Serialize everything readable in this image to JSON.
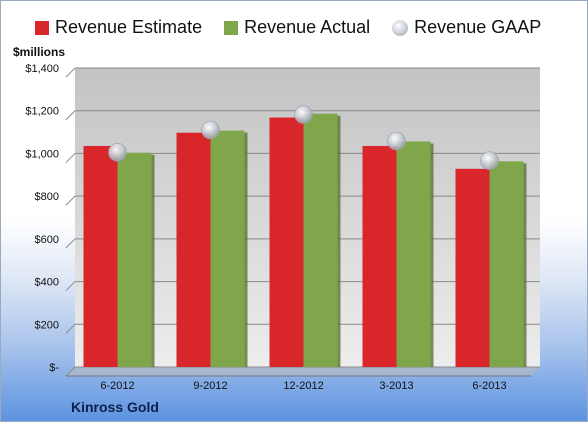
{
  "chart_data": {
    "type": "bar",
    "categories": [
      "6-2012",
      "9-2012",
      "12-2012",
      "3-2013",
      "6-2013"
    ],
    "series": [
      {
        "name": "Revenue Estimate",
        "color": "#d9262b",
        "values": [
          1035,
          1097,
          1168,
          1035,
          928
        ]
      },
      {
        "name": "Revenue Actual",
        "color": "#7fa64a",
        "values": [
          1003,
          1107,
          1186,
          1056,
          963
        ]
      }
    ],
    "markers": {
      "name": "Revenue GAAP",
      "values": [
        1005,
        1110,
        1182,
        1058,
        966
      ]
    },
    "ylabel": "$millions",
    "ylim": [
      0,
      1400
    ],
    "yticks": [
      0,
      200,
      400,
      600,
      800,
      1000,
      1200,
      1400
    ],
    "ytick_labels": [
      "$-",
      "$200",
      "$400",
      "$600",
      "$800",
      "$1,000",
      "$1,200",
      "$1,400"
    ],
    "grid": true,
    "legend_position": "top"
  },
  "company": "Kinross Gold"
}
